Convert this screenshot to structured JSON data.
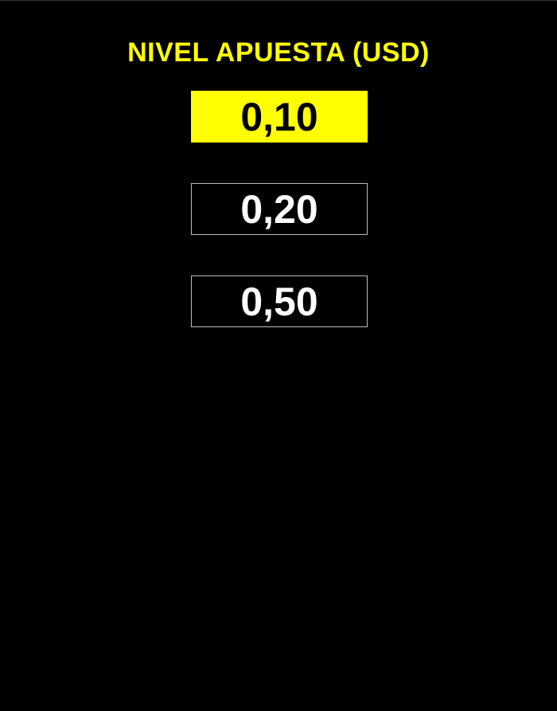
{
  "title": "NIVEL APUESTA (USD)",
  "options": [
    {
      "label": "0,10",
      "selected": true
    },
    {
      "label": "0,20",
      "selected": false
    },
    {
      "label": "0,50",
      "selected": false
    }
  ]
}
